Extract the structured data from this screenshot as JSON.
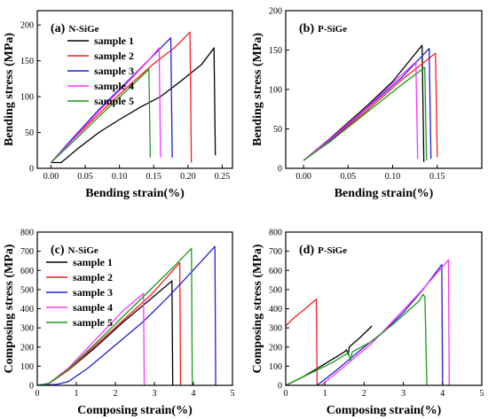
{
  "figure": {
    "alt": ""
  },
  "colors": {
    "sample1": "#000000",
    "sample2": "#ff1a1a",
    "sample3": "#1f1fd6",
    "sample4": "#ff33ff",
    "sample5": "#1a9a1a"
  },
  "chart_data": [
    {
      "id": "a",
      "type": "line",
      "title": "(a) N-SiGe",
      "title_parts": [
        "(a)",
        "N-SiGe"
      ],
      "xlabel": "Bending strain(%)",
      "ylabel": "Bending stress (MPa)",
      "xlim": [
        -0.02,
        0.265
      ],
      "ylim": [
        0,
        220
      ],
      "xticks": [
        0.0,
        0.05,
        0.1,
        0.15,
        0.2,
        0.25
      ],
      "xtick_labels": [
        "0.00",
        "0.05",
        "0.10",
        "0.15",
        "0.20",
        "0.25"
      ],
      "yticks": [
        0,
        50,
        100,
        150,
        200
      ],
      "ytick_labels": [
        "0",
        "50",
        "100",
        "150",
        "200"
      ],
      "legend": {
        "position": "top-left",
        "entries": [
          "sample 1",
          "sample 2",
          "sample 3",
          "sample 4",
          "sample 5"
        ]
      },
      "grid": false,
      "series": [
        {
          "name": "sample 1",
          "color": "#000000",
          "points": [
            [
              0.0,
              8
            ],
            [
              0.015,
              8
            ],
            [
              0.04,
              28
            ],
            [
              0.07,
              50
            ],
            [
              0.1,
              68
            ],
            [
              0.13,
              85
            ],
            [
              0.16,
              100
            ],
            [
              0.19,
              122
            ],
            [
              0.22,
              145
            ],
            [
              0.238,
              168
            ],
            [
              0.24,
              18
            ]
          ]
        },
        {
          "name": "sample 2",
          "color": "#ff1a1a",
          "points": [
            [
              0.0,
              8
            ],
            [
              0.03,
              38
            ],
            [
              0.07,
              76
            ],
            [
              0.11,
              112
            ],
            [
              0.15,
              146
            ],
            [
              0.18,
              168
            ],
            [
              0.203,
              190
            ],
            [
              0.205,
              8
            ]
          ]
        },
        {
          "name": "sample 3",
          "color": "#1f1fd6",
          "points": [
            [
              0.0,
              8
            ],
            [
              0.03,
              40
            ],
            [
              0.07,
              82
            ],
            [
              0.11,
              120
            ],
            [
              0.15,
              158
            ],
            [
              0.175,
              182
            ],
            [
              0.177,
              15
            ]
          ]
        },
        {
          "name": "sample 4",
          "color": "#ff33ff",
          "points": [
            [
              0.0,
              8
            ],
            [
              0.03,
              38
            ],
            [
              0.07,
              80
            ],
            [
              0.11,
              118
            ],
            [
              0.14,
              148
            ],
            [
              0.158,
              168
            ],
            [
              0.16,
              15
            ]
          ]
        },
        {
          "name": "sample 5",
          "color": "#1a9a1a",
          "points": [
            [
              0.0,
              8
            ],
            [
              0.03,
              35
            ],
            [
              0.07,
              72
            ],
            [
              0.11,
              108
            ],
            [
              0.143,
              138
            ],
            [
              0.145,
              15
            ]
          ]
        }
      ]
    },
    {
      "id": "b",
      "type": "line",
      "title": "(b) P-SiGe",
      "title_parts": [
        "(b)",
        "P-SiGe"
      ],
      "xlabel": "Bending strain(%)",
      "ylabel": "Bending stress (MPa)",
      "xlim": [
        -0.02,
        0.2
      ],
      "ylim": [
        0,
        200
      ],
      "xticks": [
        0.0,
        0.05,
        0.1,
        0.15
      ],
      "xtick_labels": [
        "0.00",
        "0.05",
        "0.10",
        "0.15"
      ],
      "yticks": [
        0,
        50,
        100,
        150,
        200
      ],
      "ytick_labels": [
        "0",
        "50",
        "100",
        "150",
        "200"
      ],
      "grid": false,
      "series": [
        {
          "name": "sample 1",
          "color": "#000000",
          "points": [
            [
              0.0,
              10
            ],
            [
              0.03,
              38
            ],
            [
              0.07,
              78
            ],
            [
              0.1,
              110
            ],
            [
              0.133,
              156
            ],
            [
              0.135,
              8
            ]
          ]
        },
        {
          "name": "sample 2",
          "color": "#ff1a1a",
          "points": [
            [
              0.0,
              10
            ],
            [
              0.03,
              35
            ],
            [
              0.07,
              72
            ],
            [
              0.11,
              112
            ],
            [
              0.148,
              146
            ],
            [
              0.15,
              14
            ]
          ]
        },
        {
          "name": "sample 3",
          "color": "#1f1fd6",
          "points": [
            [
              0.0,
              10
            ],
            [
              0.03,
              36
            ],
            [
              0.07,
              75
            ],
            [
              0.11,
              115
            ],
            [
              0.141,
              152
            ],
            [
              0.143,
              12
            ]
          ]
        },
        {
          "name": "sample 4",
          "color": "#ff33ff",
          "points": [
            [
              0.0,
              10
            ],
            [
              0.03,
              37
            ],
            [
              0.07,
              76
            ],
            [
              0.1,
              108
            ],
            [
              0.126,
              135
            ],
            [
              0.128,
              12
            ]
          ]
        },
        {
          "name": "sample 5",
          "color": "#1a9a1a",
          "points": [
            [
              0.0,
              10
            ],
            [
              0.03,
              34
            ],
            [
              0.07,
              70
            ],
            [
              0.11,
              106
            ],
            [
              0.136,
              128
            ],
            [
              0.138,
              10
            ]
          ]
        }
      ]
    },
    {
      "id": "c",
      "type": "line",
      "title": "(c) N-SiGe",
      "title_parts": [
        "(c)",
        "N-SiGe"
      ],
      "xlabel": "Composing strain(%)",
      "ylabel": "Composing stress (MPa)",
      "xlim": [
        0,
        5
      ],
      "ylim": [
        0,
        800
      ],
      "xticks": [
        0,
        1,
        2,
        3,
        4,
        5
      ],
      "xtick_labels": [
        "0",
        "1",
        "2",
        "3",
        "4",
        "5"
      ],
      "yticks": [
        0,
        100,
        200,
        300,
        400,
        500,
        600,
        700,
        800
      ],
      "ytick_labels": [
        "0",
        "100",
        "200",
        "300",
        "400",
        "500",
        "600",
        "700",
        "800"
      ],
      "legend": {
        "position": "left",
        "entries": [
          "sample 1",
          "sample 2",
          "sample 3",
          "sample 4",
          "sample 5"
        ]
      },
      "grid": false,
      "series": [
        {
          "name": "sample 1",
          "color": "#000000",
          "points": [
            [
              0,
              0
            ],
            [
              0.3,
              10
            ],
            [
              0.8,
              80
            ],
            [
              1.5,
              200
            ],
            [
              2.2,
              330
            ],
            [
              2.9,
              450
            ],
            [
              3.45,
              545
            ],
            [
              3.47,
              0
            ]
          ]
        },
        {
          "name": "sample 2",
          "color": "#ff1a1a",
          "points": [
            [
              0,
              0
            ],
            [
              0.3,
              10
            ],
            [
              0.8,
              80
            ],
            [
              1.5,
              210
            ],
            [
              2.2,
              340
            ],
            [
              2.9,
              470
            ],
            [
              3.3,
              560
            ],
            [
              3.65,
              640
            ],
            [
              3.67,
              0
            ]
          ]
        },
        {
          "name": "sample 3",
          "color": "#1f1fd6",
          "points": [
            [
              0,
              0
            ],
            [
              0.5,
              5
            ],
            [
              0.8,
              20
            ],
            [
              1.3,
              90
            ],
            [
              2.0,
              210
            ],
            [
              2.7,
              330
            ],
            [
              3.3,
              450
            ],
            [
              3.9,
              580
            ],
            [
              4.55,
              725
            ],
            [
              4.57,
              0
            ]
          ]
        },
        {
          "name": "sample 4",
          "color": "#ff33ff",
          "points": [
            [
              0,
              0
            ],
            [
              0.3,
              10
            ],
            [
              0.8,
              90
            ],
            [
              1.5,
              240
            ],
            [
              2.2,
              390
            ],
            [
              2.72,
              480
            ],
            [
              2.74,
              0
            ]
          ]
        },
        {
          "name": "sample 5",
          "color": "#1a9a1a",
          "points": [
            [
              0,
              0
            ],
            [
              0.3,
              10
            ],
            [
              0.8,
              85
            ],
            [
              1.5,
              220
            ],
            [
              2.2,
              360
            ],
            [
              2.9,
              500
            ],
            [
              3.5,
              620
            ],
            [
              3.95,
              715
            ],
            [
              3.97,
              0
            ]
          ]
        }
      ]
    },
    {
      "id": "d",
      "type": "line",
      "title": "(d) P-SiGe",
      "title_parts": [
        "(d)",
        "P-SiGe"
      ],
      "xlabel": "Composing strain(%)",
      "ylabel": "Composing stress (MPa)",
      "xlim": [
        0,
        5
      ],
      "ylim": [
        0,
        800
      ],
      "xticks": [
        0,
        1,
        2,
        3,
        4,
        5
      ],
      "xtick_labels": [
        "0",
        "1",
        "2",
        "3",
        "4",
        "5"
      ],
      "yticks": [
        0,
        100,
        200,
        300,
        400,
        500,
        600,
        700,
        800
      ],
      "ytick_labels": [
        "0",
        "100",
        "200",
        "300",
        "400",
        "500",
        "600",
        "700",
        "800"
      ],
      "grid": false,
      "series": [
        {
          "name": "sample 1",
          "color": "#000000",
          "points": [
            [
              0,
              0
            ],
            [
              0.4,
              40
            ],
            [
              0.9,
              100
            ],
            [
              1.5,
              175
            ],
            [
              1.55,
              185
            ],
            [
              1.6,
              160
            ],
            [
              1.62,
              200
            ],
            [
              1.9,
              250
            ],
            [
              2.2,
              310
            ]
          ]
        },
        {
          "name": "sample 2",
          "color": "#ff1a1a",
          "points": [
            [
              0,
              310
            ],
            [
              0.2,
              350
            ],
            [
              0.5,
              400
            ],
            [
              0.78,
              450
            ],
            [
              0.8,
              0
            ]
          ]
        },
        {
          "name": "sample 3",
          "color": "#1f1fd6",
          "points": [
            [
              0.8,
              0
            ],
            [
              1.3,
              80
            ],
            [
              2.0,
              200
            ],
            [
              2.5,
              280
            ],
            [
              3.0,
              380
            ],
            [
              3.5,
              500
            ],
            [
              3.98,
              630
            ],
            [
              4.0,
              0
            ]
          ]
        },
        {
          "name": "sample 4",
          "color": "#ff33ff",
          "points": [
            [
              0.9,
              0
            ],
            [
              1.5,
              100
            ],
            [
              2.2,
              220
            ],
            [
              2.8,
              350
            ],
            [
              3.4,
              480
            ],
            [
              4.15,
              655
            ],
            [
              4.17,
              0
            ]
          ]
        },
        {
          "name": "sample 5",
          "color": "#1a9a1a",
          "points": [
            [
              0,
              0
            ],
            [
              0.6,
              60
            ],
            [
              1.2,
              120
            ],
            [
              1.6,
              170
            ],
            [
              1.65,
              130
            ],
            [
              1.7,
              175
            ],
            [
              2.2,
              230
            ],
            [
              2.8,
              330
            ],
            [
              3.4,
              440
            ],
            [
              3.5,
              475
            ],
            [
              3.55,
              460
            ],
            [
              3.6,
              0
            ]
          ]
        }
      ]
    }
  ]
}
